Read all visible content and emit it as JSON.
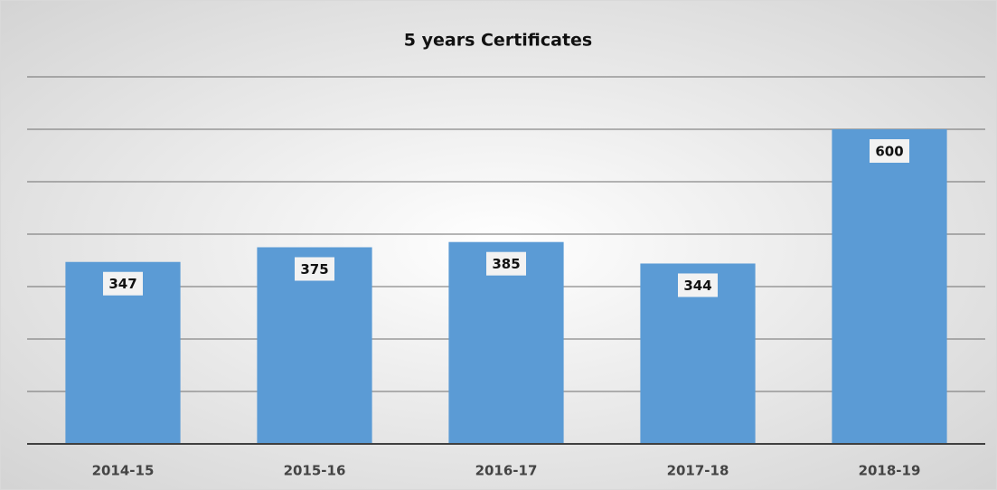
{
  "chart_data": {
    "type": "bar",
    "title": "5 years Certificates",
    "categories": [
      "2014-15",
      "2015-16",
      "2016-17",
      "2017-18",
      "2018-19"
    ],
    "values": [
      347,
      375,
      385,
      344,
      600
    ],
    "color": "#5b9bd5",
    "ylim": [
      0,
      700
    ],
    "yticks": [
      0,
      100,
      200,
      300,
      400,
      500,
      600,
      700
    ],
    "grid": true
  }
}
